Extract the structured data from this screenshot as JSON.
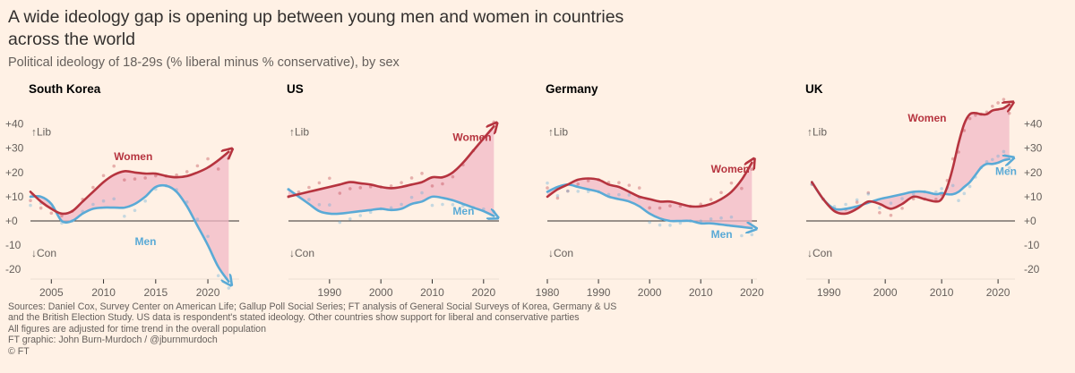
{
  "header": {
    "title": "A wide ideology gap is opening up between young men and women in countries across the world",
    "subtitle": "Political ideology of 18-29s (% liberal minus % conservative), by sex"
  },
  "footer": {
    "sources_line1": "Sources: Daniel Cox, Survey Center on American Life; Gallup Poll Social Series; FT analysis of General Social Surveys of Korea, Germany & US",
    "sources_line2": "and the British Election Study. US data is respondent's stated ideology. Other countries show support for liberal and conservative parties",
    "sources_line3": "All figures are adjusted for time trend in the overall population",
    "credit": "FT graphic: John Burn-Murdoch / @jburnmurdoch",
    "copyright": "© FT"
  },
  "colors": {
    "women": "#b6343f",
    "men": "#5aaad6",
    "gap_fill": "#f2b8c6",
    "axis_text": "#66605c",
    "zero_line": "#33302e",
    "background": "#fff1e5"
  },
  "chart_data": [
    {
      "type": "line",
      "title": "South Korea",
      "xlim": [
        2003,
        2023
      ],
      "ylim": [
        -24,
        45
      ],
      "xticks": [
        2005,
        2010,
        2015,
        2020
      ],
      "yticks": [
        -20,
        -10,
        0,
        10,
        20,
        30,
        40
      ],
      "ytick_labels": [
        "-20",
        "-10",
        "+0",
        "+10",
        "+20",
        "+30",
        "+40"
      ],
      "ytick_side": "left",
      "annotations": {
        "lib": "↑Lib",
        "con": "↓Con"
      },
      "series": [
        {
          "name": "Women",
          "x": [
            2003,
            2004,
            2005,
            2006,
            2007,
            2008,
            2009,
            2010,
            2011,
            2012,
            2013,
            2014,
            2015,
            2016,
            2017,
            2018,
            2019,
            2020,
            2021,
            2022
          ],
          "values": [
            12,
            8,
            5,
            3,
            4,
            8,
            12,
            16,
            19,
            20.5,
            20,
            19.5,
            19.5,
            18.5,
            18,
            18.5,
            20,
            22,
            25,
            28.5
          ]
        },
        {
          "name": "Men",
          "x": [
            2003,
            2004,
            2005,
            2006,
            2007,
            2008,
            2009,
            2010,
            2011,
            2012,
            2013,
            2014,
            2015,
            2016,
            2017,
            2018,
            2019,
            2020,
            2021,
            2022
          ],
          "values": [
            10,
            10,
            7,
            0,
            0,
            3,
            5,
            5.5,
            5.5,
            5.5,
            7,
            10,
            14,
            14.5,
            12,
            6,
            -2,
            -10,
            -19,
            -25
          ]
        }
      ]
    },
    {
      "type": "line",
      "title": "US",
      "xlim": [
        1982,
        2023
      ],
      "ylim": [
        -24,
        45
      ],
      "xticks": [
        1990,
        2000,
        2010,
        2020
      ],
      "yticks": [],
      "ytick_labels": [],
      "ytick_side": "none",
      "annotations": {
        "lib": "↑Lib",
        "con": "↓Con"
      },
      "series": [
        {
          "name": "Women",
          "x": [
            1982,
            1984,
            1986,
            1988,
            1990,
            1992,
            1994,
            1996,
            1998,
            2000,
            2002,
            2004,
            2006,
            2008,
            2010,
            2012,
            2014,
            2016,
            2018,
            2020,
            2022
          ],
          "values": [
            10,
            11,
            12,
            13,
            14,
            15,
            16,
            15.5,
            15,
            14,
            13.5,
            14,
            15,
            16,
            18,
            18,
            20,
            24,
            29,
            34,
            39
          ]
        },
        {
          "name": "Men",
          "x": [
            1982,
            1984,
            1986,
            1988,
            1990,
            1992,
            1994,
            1996,
            1998,
            2000,
            2002,
            2004,
            2006,
            2008,
            2010,
            2012,
            2014,
            2016,
            2018,
            2020,
            2022
          ],
          "values": [
            13,
            10,
            7,
            4,
            3,
            3,
            3.5,
            4,
            4.5,
            5,
            4.5,
            5,
            7,
            8,
            10,
            9.5,
            8.5,
            7,
            5.5,
            4,
            2
          ]
        }
      ]
    },
    {
      "type": "line",
      "title": "Germany",
      "xlim": [
        1980,
        2021
      ],
      "ylim": [
        -24,
        45
      ],
      "xticks": [
        1980,
        1990,
        2000,
        2010,
        2020
      ],
      "yticks": [],
      "ytick_labels": [],
      "ytick_side": "none",
      "annotations": {
        "lib": "↑Lib",
        "con": "↓Con"
      },
      "series": [
        {
          "name": "Women",
          "x": [
            1980,
            1982,
            1984,
            1986,
            1988,
            1990,
            1992,
            1994,
            1996,
            1998,
            2000,
            2002,
            2004,
            2006,
            2008,
            2010,
            2012,
            2014,
            2016,
            2018,
            2020
          ],
          "values": [
            10,
            13,
            15,
            17,
            17.5,
            17,
            15,
            14,
            12,
            10,
            9,
            8,
            8,
            7,
            6,
            6,
            7,
            9,
            12,
            17,
            24
          ]
        },
        {
          "name": "Men",
          "x": [
            1980,
            1982,
            1984,
            1986,
            1988,
            1990,
            1992,
            1994,
            1996,
            1998,
            2000,
            2002,
            2004,
            2006,
            2008,
            2010,
            2012,
            2014,
            2016,
            2018,
            2020
          ],
          "values": [
            12,
            14,
            15,
            14,
            13,
            12,
            10,
            9,
            8,
            6,
            3,
            1,
            0,
            0,
            0,
            -1,
            -1,
            -1.5,
            -2,
            -2.5,
            -3
          ]
        }
      ]
    },
    {
      "type": "line",
      "title": "UK",
      "xlim": [
        1986,
        2023
      ],
      "ylim": [
        -24,
        45
      ],
      "xticks": [
        1990,
        2000,
        2010,
        2020
      ],
      "yticks": [
        -20,
        -10,
        0,
        10,
        20,
        30,
        40
      ],
      "ytick_labels": [
        "-20",
        "-10",
        "+0",
        "+10",
        "+20",
        "+30",
        "+40"
      ],
      "ytick_side": "right",
      "annotations": {
        "lib": "↑Lib",
        "con": "↓Con"
      },
      "series": [
        {
          "name": "Women",
          "x": [
            1987,
            1989,
            1991,
            1993,
            1995,
            1997,
            1999,
            2001,
            2003,
            2005,
            2007,
            2009,
            2010,
            2011,
            2012,
            2013,
            2014,
            2015,
            2016,
            2017,
            2018,
            2019,
            2020,
            2021,
            2022
          ],
          "values": [
            16,
            9,
            4,
            3,
            5,
            8,
            7,
            5,
            7,
            10,
            9,
            8,
            9,
            14,
            22,
            32,
            40,
            44,
            44.5,
            44,
            44,
            45.5,
            46,
            46.5,
            48
          ]
        },
        {
          "name": "Men",
          "x": [
            1987,
            1989,
            1991,
            1993,
            1995,
            1997,
            1999,
            2001,
            2003,
            2005,
            2007,
            2009,
            2010,
            2011,
            2012,
            2013,
            2014,
            2015,
            2016,
            2017,
            2018,
            2019,
            2020,
            2021,
            2022
          ],
          "values": [
            16,
            9,
            5,
            5,
            6,
            7.5,
            9,
            10,
            11,
            12,
            12,
            11,
            11.5,
            11,
            11,
            12,
            14,
            16,
            19,
            22,
            23.5,
            23.5,
            24,
            25,
            25.5
          ]
        }
      ]
    }
  ]
}
